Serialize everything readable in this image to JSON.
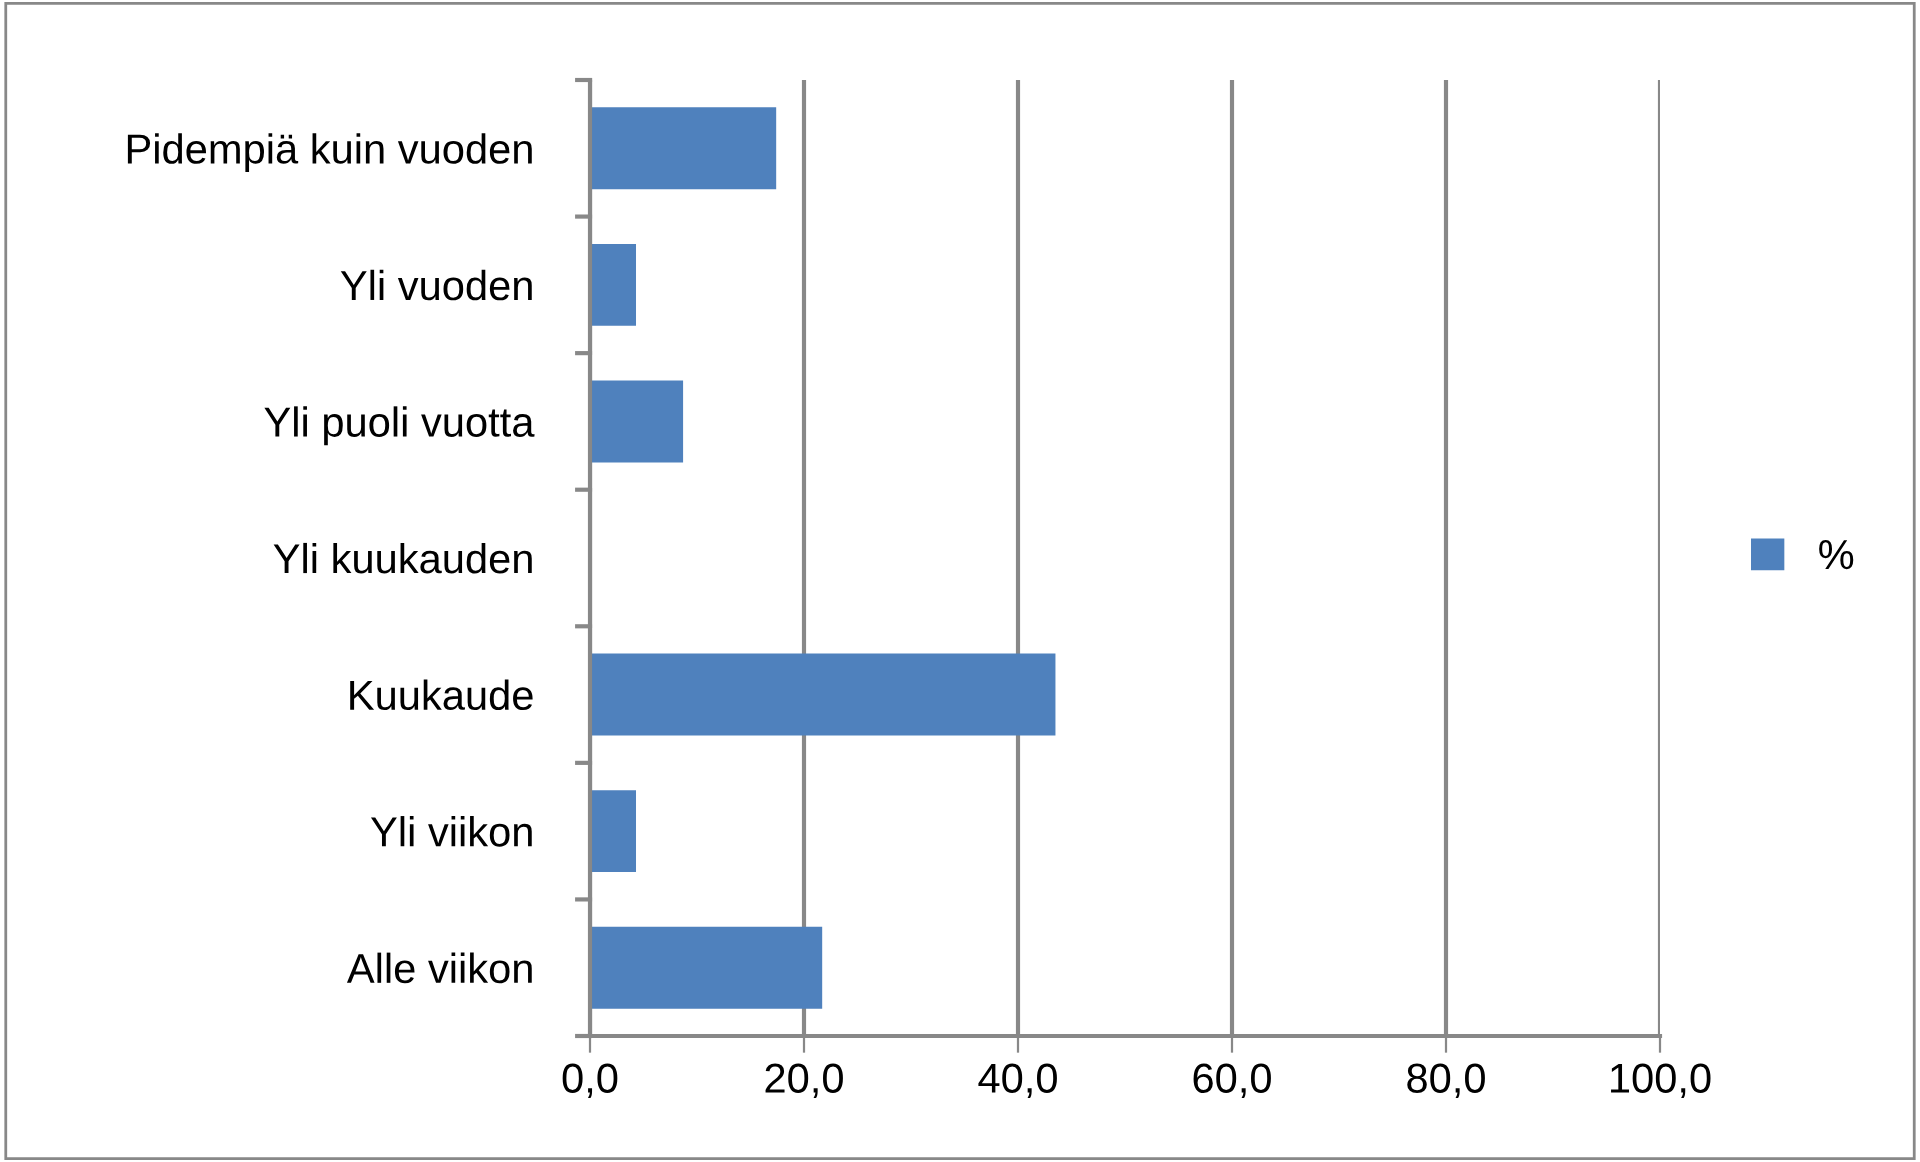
{
  "chart_data": {
    "type": "bar",
    "orientation": "horizontal",
    "categories": [
      "Pidempiä kuin vuoden",
      "Yli vuoden",
      "Yli puoli vuotta",
      "Yli kuukauden",
      "Kuukaude",
      "Yli viikon",
      "Alle viikon"
    ],
    "series": [
      {
        "name": "%",
        "color": "#4f81bd",
        "values": [
          17.4,
          4.3,
          8.7,
          0,
          43.5,
          4.3,
          21.7
        ]
      }
    ],
    "xlim": [
      0,
      100
    ],
    "xticks": [
      {
        "value": 0,
        "label": "0,0"
      },
      {
        "value": 20,
        "label": "20,0"
      },
      {
        "value": 40,
        "label": "40,0"
      },
      {
        "value": 60,
        "label": "60,0"
      },
      {
        "value": 80,
        "label": "80,0"
      },
      {
        "value": 100,
        "label": "100,0"
      }
    ],
    "grid": "x",
    "legend": "right"
  }
}
